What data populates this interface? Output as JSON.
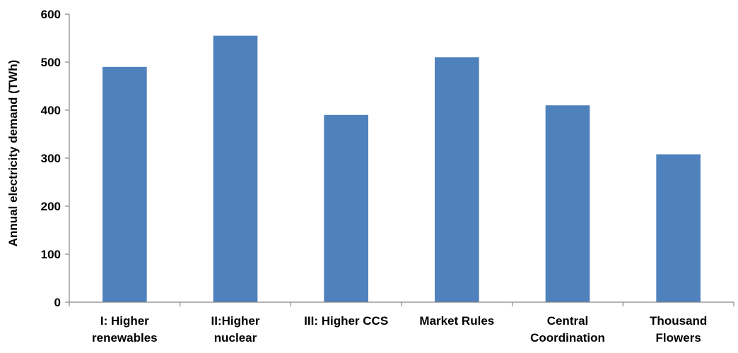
{
  "chart_data": {
    "type": "bar",
    "title": "",
    "xlabel": "",
    "ylabel": "Annual electricity demand (TWh)",
    "ylim": [
      0,
      600
    ],
    "yticks": [
      0,
      100,
      200,
      300,
      400,
      500,
      600
    ],
    "grid": false,
    "legend": "none",
    "bar_color": "#4f81bd",
    "categories": [
      [
        "I: Higher",
        "renewables"
      ],
      [
        "II:Higher",
        "nuclear"
      ],
      [
        "III: Higher CCS"
      ],
      [
        "Market Rules"
      ],
      [
        "Central",
        "Coordination"
      ],
      [
        "Thousand",
        "Flowers"
      ]
    ],
    "values": [
      490,
      555,
      390,
      510,
      410,
      308
    ]
  }
}
